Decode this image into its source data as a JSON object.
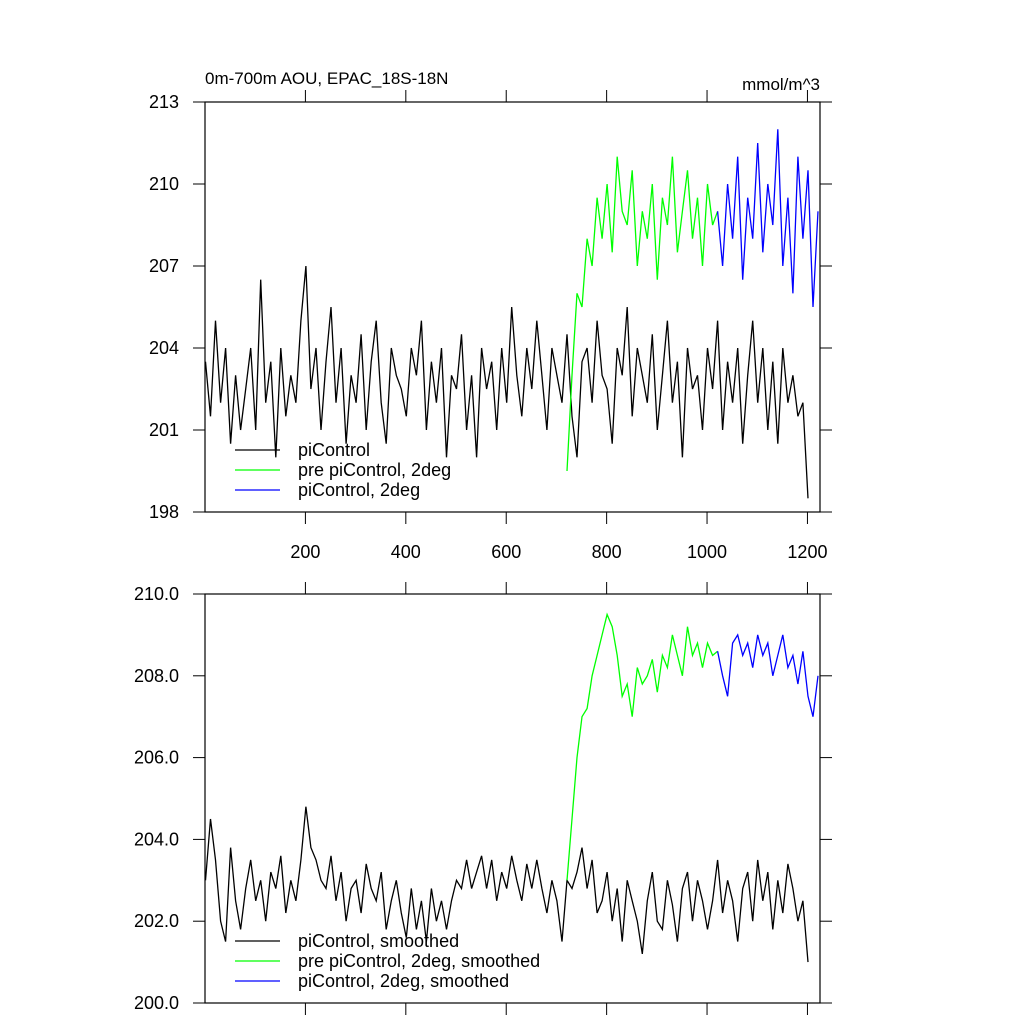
{
  "chart_data": [
    {
      "type": "line",
      "title": "0m-700m AOU, EPAC_18S-18N",
      "units": "mmol/m^3",
      "xlim": [
        0,
        1225
      ],
      "xticks": [
        200,
        400,
        600,
        800,
        1000,
        1200
      ],
      "ylim": [
        198,
        213
      ],
      "yticks": [
        198,
        201,
        204,
        207,
        210,
        213
      ],
      "show_xtick_labels": true,
      "legend": "lower-left",
      "series": [
        {
          "name": "piControl",
          "color": "#000000",
          "x": [
            1,
            11,
            21,
            31,
            41,
            51,
            61,
            71,
            81,
            91,
            101,
            111,
            121,
            131,
            141,
            151,
            161,
            171,
            181,
            191,
            201,
            211,
            221,
            231,
            241,
            251,
            261,
            271,
            281,
            291,
            301,
            311,
            321,
            331,
            341,
            351,
            361,
            371,
            381,
            391,
            401,
            411,
            421,
            431,
            441,
            451,
            461,
            471,
            481,
            491,
            501,
            511,
            521,
            531,
            541,
            551,
            561,
            571,
            581,
            591,
            601,
            611,
            621,
            631,
            641,
            651,
            661,
            671,
            681,
            691,
            701,
            711,
            721,
            731,
            741,
            751,
            761,
            771,
            781,
            791,
            801,
            811,
            821,
            831,
            841,
            851,
            861,
            871,
            881,
            891,
            901,
            911,
            921,
            931,
            941,
            951,
            961,
            971,
            981,
            991,
            1001,
            1011,
            1021,
            1031,
            1041,
            1051,
            1061,
            1071,
            1081,
            1091,
            1101,
            1111,
            1121,
            1131,
            1141,
            1151,
            1161,
            1171,
            1181,
            1191,
            1201
          ],
          "values": [
            203.5,
            201.5,
            205,
            202,
            204,
            200.5,
            203,
            201,
            202.5,
            204,
            201,
            206.5,
            202,
            203.5,
            200,
            204,
            201.5,
            203,
            202,
            205,
            207,
            202.5,
            204,
            201,
            203.5,
            205.5,
            202,
            204,
            200.5,
            203,
            202,
            204.5,
            201,
            203.5,
            205,
            202,
            200.5,
            204,
            203,
            202.5,
            201.5,
            204,
            203,
            205,
            201,
            203.5,
            202,
            204,
            200,
            203,
            202.5,
            204.5,
            201,
            203,
            200,
            204,
            202.5,
            203.5,
            201,
            204,
            202,
            205.5,
            203,
            201.5,
            204,
            202.5,
            205,
            203,
            201,
            204,
            203,
            202,
            204.5,
            201.5,
            200,
            203.5,
            204,
            202,
            205,
            203,
            202.5,
            200.5,
            204,
            203,
            205.5,
            201.5,
            204,
            203,
            202,
            204.5,
            201,
            203,
            205,
            202,
            203.5,
            200,
            204,
            202.5,
            203,
            201,
            204,
            202.5,
            205,
            201,
            203.5,
            202,
            204,
            200.5,
            203,
            205,
            202,
            204,
            201,
            203.5,
            200.5,
            204,
            202,
            203,
            201.5,
            202,
            198.5
          ]
        },
        {
          "name": "pre piControl, 2deg",
          "color": "#00ff00",
          "x": [
            721,
            731,
            741,
            751,
            761,
            771,
            781,
            791,
            801,
            811,
            821,
            831,
            841,
            851,
            861,
            871,
            881,
            891,
            901,
            911,
            921,
            931,
            941,
            951,
            961,
            971,
            981,
            991,
            1001,
            1011,
            1021
          ],
          "values": [
            199.5,
            203,
            206,
            205.5,
            208,
            207,
            209.5,
            208,
            210,
            207.5,
            211,
            209,
            208.5,
            210.5,
            207,
            209,
            208,
            210,
            206.5,
            209.5,
            208.5,
            211,
            207.5,
            209,
            210.5,
            208,
            209.5,
            207,
            210,
            208.5,
            209
          ]
        },
        {
          "name": "piControl, 2deg",
          "color": "#0000ff",
          "x": [
            1021,
            1031,
            1041,
            1051,
            1061,
            1071,
            1081,
            1091,
            1101,
            1111,
            1121,
            1131,
            1141,
            1151,
            1161,
            1171,
            1181,
            1191,
            1201,
            1211,
            1221
          ],
          "values": [
            209,
            207,
            210,
            208,
            211,
            206.5,
            209.5,
            208,
            211.5,
            207.5,
            210,
            208.5,
            212,
            207,
            209.5,
            206,
            211,
            208,
            210.5,
            205.5,
            209
          ]
        }
      ]
    },
    {
      "type": "line",
      "xlim": [
        0,
        1225
      ],
      "xticks": [
        200,
        400,
        600,
        800,
        1000,
        1200
      ],
      "ylim": [
        200,
        210
      ],
      "yticks": [
        {
          "value": 200,
          "label": "200.0"
        },
        {
          "value": 202,
          "label": "202.0"
        },
        {
          "value": 204,
          "label": "204.0"
        },
        {
          "value": 206,
          "label": "206.0"
        },
        {
          "value": 208,
          "label": "208.0"
        },
        {
          "value": 210,
          "label": "210.0"
        }
      ],
      "show_xtick_labels": false,
      "legend": "lower-left",
      "series": [
        {
          "name": "piControl, smoothed",
          "color": "#000000",
          "x": [
            1,
            11,
            21,
            31,
            41,
            51,
            61,
            71,
            81,
            91,
            101,
            111,
            121,
            131,
            141,
            151,
            161,
            171,
            181,
            191,
            201,
            211,
            221,
            231,
            241,
            251,
            261,
            271,
            281,
            291,
            301,
            311,
            321,
            331,
            341,
            351,
            361,
            371,
            381,
            391,
            401,
            411,
            421,
            431,
            441,
            451,
            461,
            471,
            481,
            491,
            501,
            511,
            521,
            531,
            541,
            551,
            561,
            571,
            581,
            591,
            601,
            611,
            621,
            631,
            641,
            651,
            661,
            671,
            681,
            691,
            701,
            711,
            721,
            731,
            741,
            751,
            761,
            771,
            781,
            791,
            801,
            811,
            821,
            831,
            841,
            851,
            861,
            871,
            881,
            891,
            901,
            911,
            921,
            931,
            941,
            951,
            961,
            971,
            981,
            991,
            1001,
            1011,
            1021,
            1031,
            1041,
            1051,
            1061,
            1071,
            1081,
            1091,
            1101,
            1111,
            1121,
            1131,
            1141,
            1151,
            1161,
            1171,
            1181,
            1191,
            1201
          ],
          "values": [
            203,
            204.5,
            203.5,
            202,
            201.5,
            203.8,
            202.5,
            201.8,
            202.8,
            203.5,
            202.5,
            203,
            202,
            203.2,
            202.8,
            203.6,
            202.2,
            203,
            202.5,
            203.5,
            204.8,
            203.8,
            203.5,
            203,
            202.8,
            203.6,
            202.5,
            203.2,
            202,
            202.8,
            203,
            202.2,
            203.4,
            202.8,
            202.5,
            203.2,
            201.8,
            202.5,
            203,
            202.2,
            201.6,
            202.8,
            201.8,
            202.5,
            201.5,
            202.8,
            202,
            202.5,
            201.8,
            202.5,
            203,
            202.8,
            203.5,
            202.8,
            203.2,
            203.6,
            202.8,
            203.5,
            202.5,
            203.2,
            202.8,
            203.6,
            203,
            202.5,
            203.4,
            202.8,
            203.5,
            202.8,
            202.2,
            203,
            202.5,
            201.5,
            203,
            202.8,
            203.2,
            203.8,
            202.8,
            203.5,
            202.2,
            202.5,
            203.2,
            202,
            202.8,
            201.5,
            203,
            202.5,
            202,
            201.2,
            202.5,
            203.2,
            202,
            201.8,
            203,
            202.4,
            201.5,
            202.8,
            203.2,
            202,
            203,
            202.5,
            201.8,
            202.5,
            203.5,
            202.2,
            203,
            202.5,
            201.5,
            202.8,
            203.2,
            202,
            203.5,
            202.5,
            203.2,
            201.8,
            203,
            202.2,
            203.4,
            202.8,
            202,
            202.5,
            201
          ]
        },
        {
          "name": "pre piControl, 2deg, smoothed",
          "color": "#00ff00",
          "x": [
            721,
            731,
            741,
            751,
            761,
            771,
            781,
            791,
            801,
            811,
            821,
            831,
            841,
            851,
            861,
            871,
            881,
            891,
            901,
            911,
            921,
            931,
            941,
            951,
            961,
            971,
            981,
            991,
            1001,
            1011,
            1021
          ],
          "values": [
            203,
            204.5,
            206,
            207,
            207.2,
            208,
            208.5,
            209,
            209.5,
            209.2,
            208.5,
            207.5,
            207.8,
            207,
            208.2,
            207.8,
            208,
            208.4,
            207.6,
            208.5,
            208.2,
            209,
            208.5,
            208,
            209.2,
            208.5,
            208.8,
            208.2,
            208.8,
            208.5,
            208.6
          ]
        },
        {
          "name": "piControl, 2deg, smoothed",
          "color": "#0000ff",
          "x": [
            1021,
            1031,
            1041,
            1051,
            1061,
            1071,
            1081,
            1091,
            1101,
            1111,
            1121,
            1131,
            1141,
            1151,
            1161,
            1171,
            1181,
            1191,
            1201,
            1211,
            1221
          ],
          "values": [
            208.6,
            208,
            207.5,
            208.8,
            209,
            208.5,
            208.8,
            208.2,
            209,
            208.5,
            208.8,
            208,
            208.5,
            209,
            208.2,
            208.5,
            207.8,
            208.6,
            207.5,
            207,
            208
          ]
        }
      ]
    }
  ]
}
